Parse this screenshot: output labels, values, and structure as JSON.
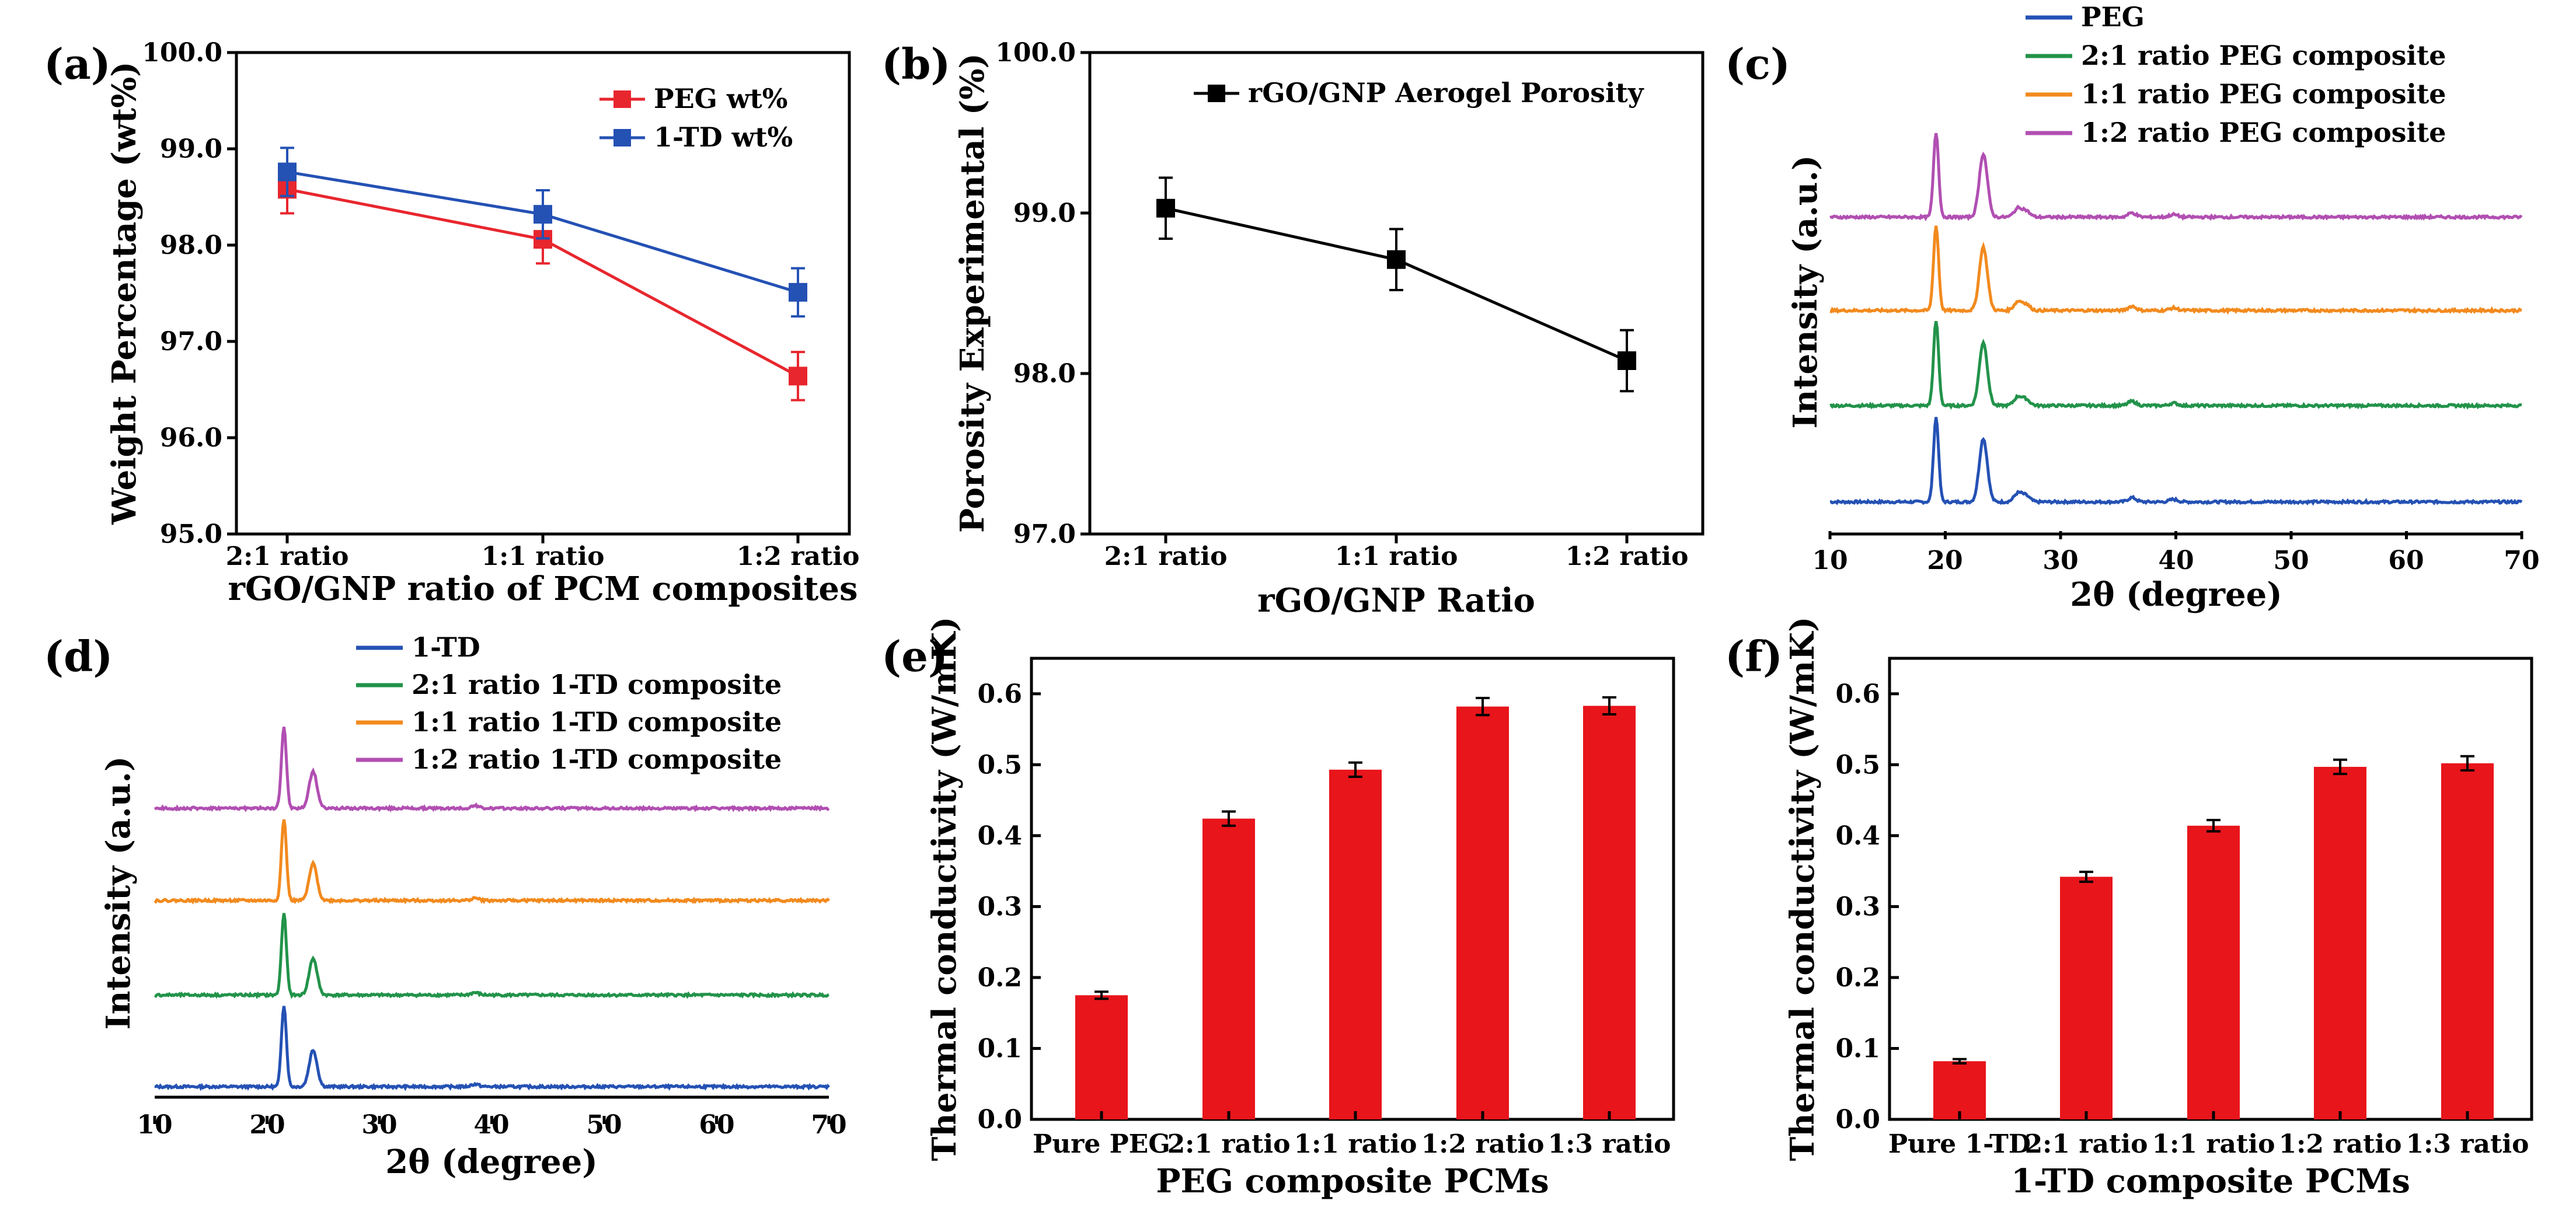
{
  "chart_data": [
    {
      "panel": "(a)",
      "type": "line",
      "xlabel": "rGO/GNP ratio of PCM composites",
      "ylabel": "Weight Percentage (wt%)",
      "categories": [
        "2:1 ratio",
        "1:1 ratio",
        "1:2 ratio"
      ],
      "ylim": [
        95.0,
        100.0
      ],
      "yticks": [
        "95.0",
        "96.0",
        "97.0",
        "98.0",
        "99.0",
        "100.0"
      ],
      "legend_position": "top-right",
      "series": [
        {
          "name": "PEG wt%",
          "color": "#e8262e",
          "values": [
            98.58,
            98.06,
            96.64
          ],
          "errors": [
            0.25,
            0.25,
            0.25
          ]
        },
        {
          "name": "1-TD wt%",
          "color": "#2451b4",
          "values": [
            98.76,
            98.32,
            97.51
          ],
          "errors": [
            0.25,
            0.25,
            0.25
          ]
        }
      ]
    },
    {
      "panel": "(b)",
      "type": "line",
      "xlabel": "rGO/GNP Ratio",
      "ylabel": "Porosity Experimental (%)",
      "categories": [
        "2:1 ratio",
        "1:1 ratio",
        "1:2 ratio"
      ],
      "ylim": [
        97.0,
        100.0
      ],
      "yticks": [
        "97.0",
        "98.0",
        "99.0",
        "100.0"
      ],
      "legend_position": "top-right",
      "series": [
        {
          "name": "rGO/GNP Aerogel Porosity",
          "color": "#000000",
          "values": [
            99.03,
            98.71,
            98.08
          ],
          "errors": [
            0.19,
            0.19,
            0.19
          ]
        }
      ]
    },
    {
      "panel": "(c)",
      "type": "line",
      "xlabel": "2θ (degree)",
      "ylabel": "Intensity (a.u.)",
      "xlim": [
        10,
        70
      ],
      "xticks": [
        "10",
        "20",
        "30",
        "40",
        "50",
        "60",
        "70"
      ],
      "peaks_2theta": [
        19.2,
        23.3,
        26.3,
        27.0,
        36.2,
        39.8
      ],
      "peak_heights_au": [
        1.0,
        0.75,
        0.1,
        0.07,
        0.05,
        0.03
      ],
      "legend_position": "top-right",
      "series": [
        {
          "name": "PEG",
          "color": "#2451b4"
        },
        {
          "name": "2:1 ratio PEG composite",
          "color": "#22934a"
        },
        {
          "name": "1:1 ratio PEG composite",
          "color": "#f28a1e"
        },
        {
          "name": "1:2 ratio PEG composite",
          "color": "#b14fb2"
        }
      ]
    },
    {
      "panel": "(d)",
      "type": "line",
      "xlabel": "2θ (degree)",
      "ylabel": "Intensity (a.u.)",
      "xlim": [
        10,
        70
      ],
      "xticks": [
        "10",
        "20",
        "30",
        "40",
        "50",
        "60",
        "70"
      ],
      "peaks_2theta": [
        21.5,
        24.1,
        38.5
      ],
      "peak_heights_au": [
        1.0,
        0.45,
        0.03
      ],
      "legend_position": "top-right",
      "series": [
        {
          "name": "1-TD",
          "color": "#2451b4"
        },
        {
          "name": "2:1 ratio 1-TD composite",
          "color": "#22934a"
        },
        {
          "name": "1:1 ratio 1-TD composite",
          "color": "#f28a1e"
        },
        {
          "name": "1:2 ratio 1-TD composite",
          "color": "#b14fb2"
        }
      ]
    },
    {
      "panel": "(e)",
      "type": "bar",
      "xlabel": "PEG composite PCMs",
      "ylabel": "Thermal conductivity (W/mK)",
      "categories": [
        "Pure PEG",
        "2:1 ratio",
        "1:1 ratio",
        "1:2 ratio",
        "1:3 ratio"
      ],
      "values": [
        0.175,
        0.424,
        0.493,
        0.582,
        0.583
      ],
      "errors": [
        0.005,
        0.01,
        0.01,
        0.012,
        0.012
      ],
      "ylim": [
        0.0,
        0.65
      ],
      "yticks": [
        "0.0",
        "0.1",
        "0.2",
        "0.3",
        "0.4",
        "0.5",
        "0.6"
      ],
      "bar_color": "#e8151b"
    },
    {
      "panel": "(f)",
      "type": "bar",
      "xlabel": "1-TD composite PCMs",
      "ylabel": "Thermal conductivity (W/mK)",
      "categories": [
        "Pure 1-TD",
        "2:1 ratio",
        "1:1 ratio",
        "1:2 ratio",
        "1:3 ratio"
      ],
      "values": [
        0.082,
        0.342,
        0.414,
        0.497,
        0.502
      ],
      "errors": [
        0.003,
        0.007,
        0.008,
        0.01,
        0.01
      ],
      "ylim": [
        0.0,
        0.65
      ],
      "yticks": [
        "0.0",
        "0.1",
        "0.2",
        "0.3",
        "0.4",
        "0.5",
        "0.6"
      ],
      "bar_color": "#e8151b"
    }
  ]
}
